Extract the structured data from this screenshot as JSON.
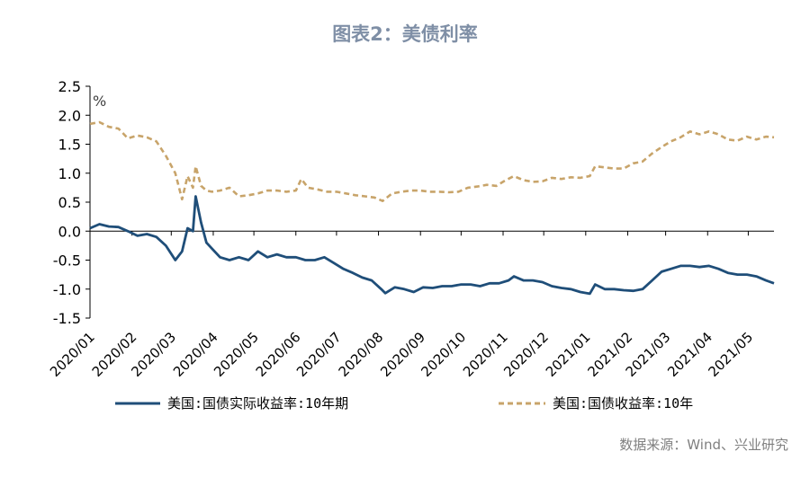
{
  "title": "图表2：美债利率",
  "source": "数据来源：Wind、兴业研究",
  "chart_data": {
    "type": "line",
    "unit_label": "%",
    "ylim": [
      -1.5,
      2.5
    ],
    "yticks": [
      "2.5",
      "2.0",
      "1.5",
      "1.0",
      "0.5",
      "0.0",
      "-0.5",
      "-1.0",
      "-1.5"
    ],
    "x_range": [
      "2020-01-01",
      "2021-05-20"
    ],
    "xticks": [
      "2020/01",
      "2020/02",
      "2020/03",
      "2020/04",
      "2020/05",
      "2020/06",
      "2020/07",
      "2020/08",
      "2020/09",
      "2020/10",
      "2020/11",
      "2020/12",
      "2021/01",
      "2021/02",
      "2021/03",
      "2021/04",
      "2021/05"
    ],
    "grid": false,
    "legend_position": "bottom",
    "series": [
      {
        "name": "美国:国债实际收益率:10年期",
        "color": "#1f4e79",
        "style": "solid",
        "points": [
          [
            "2020-01-01",
            0.05
          ],
          [
            "2020-01-08",
            0.12
          ],
          [
            "2020-01-15",
            0.08
          ],
          [
            "2020-01-22",
            0.07
          ],
          [
            "2020-01-29",
            0.0
          ],
          [
            "2020-02-05",
            -0.08
          ],
          [
            "2020-02-12",
            -0.05
          ],
          [
            "2020-02-19",
            -0.1
          ],
          [
            "2020-02-26",
            -0.25
          ],
          [
            "2020-03-04",
            -0.5
          ],
          [
            "2020-03-09",
            -0.35
          ],
          [
            "2020-03-13",
            0.05
          ],
          [
            "2020-03-17",
            0.0
          ],
          [
            "2020-03-19",
            0.6
          ],
          [
            "2020-03-23",
            0.15
          ],
          [
            "2020-03-27",
            -0.2
          ],
          [
            "2020-03-31",
            -0.3
          ],
          [
            "2020-04-06",
            -0.45
          ],
          [
            "2020-04-13",
            -0.5
          ],
          [
            "2020-04-20",
            -0.45
          ],
          [
            "2020-04-27",
            -0.5
          ],
          [
            "2020-05-04",
            -0.35
          ],
          [
            "2020-05-11",
            -0.45
          ],
          [
            "2020-05-18",
            -0.4
          ],
          [
            "2020-05-25",
            -0.45
          ],
          [
            "2020-06-01",
            -0.45
          ],
          [
            "2020-06-08",
            -0.5
          ],
          [
            "2020-06-15",
            -0.5
          ],
          [
            "2020-06-22",
            -0.45
          ],
          [
            "2020-06-29",
            -0.55
          ],
          [
            "2020-07-06",
            -0.65
          ],
          [
            "2020-07-13",
            -0.72
          ],
          [
            "2020-07-20",
            -0.8
          ],
          [
            "2020-07-27",
            -0.85
          ],
          [
            "2020-08-03",
            -1.0
          ],
          [
            "2020-08-06",
            -1.07
          ],
          [
            "2020-08-13",
            -0.97
          ],
          [
            "2020-08-20",
            -1.0
          ],
          [
            "2020-08-27",
            -1.05
          ],
          [
            "2020-09-03",
            -0.97
          ],
          [
            "2020-09-10",
            -0.98
          ],
          [
            "2020-09-17",
            -0.95
          ],
          [
            "2020-09-24",
            -0.95
          ],
          [
            "2020-10-01",
            -0.92
          ],
          [
            "2020-10-08",
            -0.92
          ],
          [
            "2020-10-15",
            -0.95
          ],
          [
            "2020-10-22",
            -0.9
          ],
          [
            "2020-10-29",
            -0.9
          ],
          [
            "2020-11-05",
            -0.85
          ],
          [
            "2020-11-09",
            -0.78
          ],
          [
            "2020-11-16",
            -0.85
          ],
          [
            "2020-11-23",
            -0.85
          ],
          [
            "2020-11-30",
            -0.88
          ],
          [
            "2020-12-07",
            -0.95
          ],
          [
            "2020-12-14",
            -0.98
          ],
          [
            "2020-12-21",
            -1.0
          ],
          [
            "2020-12-28",
            -1.05
          ],
          [
            "2021-01-04",
            -1.08
          ],
          [
            "2021-01-08",
            -0.92
          ],
          [
            "2021-01-15",
            -1.0
          ],
          [
            "2021-01-22",
            -1.0
          ],
          [
            "2021-01-29",
            -1.02
          ],
          [
            "2021-02-05",
            -1.03
          ],
          [
            "2021-02-12",
            -1.0
          ],
          [
            "2021-02-19",
            -0.85
          ],
          [
            "2021-02-26",
            -0.7
          ],
          [
            "2021-03-05",
            -0.65
          ],
          [
            "2021-03-12",
            -0.6
          ],
          [
            "2021-03-19",
            -0.6
          ],
          [
            "2021-03-26",
            -0.62
          ],
          [
            "2021-04-02",
            -0.6
          ],
          [
            "2021-04-09",
            -0.65
          ],
          [
            "2021-04-16",
            -0.72
          ],
          [
            "2021-04-23",
            -0.75
          ],
          [
            "2021-04-30",
            -0.75
          ],
          [
            "2021-05-07",
            -0.78
          ],
          [
            "2021-05-14",
            -0.85
          ],
          [
            "2021-05-20",
            -0.9
          ]
        ]
      },
      {
        "name": "美国:国债收益率:10年",
        "color": "#c8a46a",
        "style": "dashed",
        "points": [
          [
            "2020-01-01",
            1.85
          ],
          [
            "2020-01-08",
            1.88
          ],
          [
            "2020-01-15",
            1.8
          ],
          [
            "2020-01-22",
            1.77
          ],
          [
            "2020-01-29",
            1.6
          ],
          [
            "2020-02-05",
            1.65
          ],
          [
            "2020-02-12",
            1.62
          ],
          [
            "2020-02-19",
            1.55
          ],
          [
            "2020-02-26",
            1.3
          ],
          [
            "2020-03-04",
            1.0
          ],
          [
            "2020-03-09",
            0.55
          ],
          [
            "2020-03-13",
            0.95
          ],
          [
            "2020-03-17",
            0.75
          ],
          [
            "2020-03-19",
            1.12
          ],
          [
            "2020-03-23",
            0.78
          ],
          [
            "2020-03-27",
            0.7
          ],
          [
            "2020-03-31",
            0.68
          ],
          [
            "2020-04-06",
            0.7
          ],
          [
            "2020-04-13",
            0.75
          ],
          [
            "2020-04-20",
            0.6
          ],
          [
            "2020-04-27",
            0.62
          ],
          [
            "2020-05-04",
            0.65
          ],
          [
            "2020-05-11",
            0.7
          ],
          [
            "2020-05-18",
            0.7
          ],
          [
            "2020-05-25",
            0.68
          ],
          [
            "2020-06-01",
            0.7
          ],
          [
            "2020-06-05",
            0.9
          ],
          [
            "2020-06-10",
            0.75
          ],
          [
            "2020-06-17",
            0.72
          ],
          [
            "2020-06-24",
            0.68
          ],
          [
            "2020-07-01",
            0.68
          ],
          [
            "2020-07-08",
            0.65
          ],
          [
            "2020-07-15",
            0.62
          ],
          [
            "2020-07-22",
            0.6
          ],
          [
            "2020-07-29",
            0.58
          ],
          [
            "2020-08-04",
            0.52
          ],
          [
            "2020-08-11",
            0.65
          ],
          [
            "2020-08-18",
            0.68
          ],
          [
            "2020-08-25",
            0.7
          ],
          [
            "2020-09-01",
            0.7
          ],
          [
            "2020-09-08",
            0.68
          ],
          [
            "2020-09-15",
            0.68
          ],
          [
            "2020-09-22",
            0.67
          ],
          [
            "2020-09-29",
            0.68
          ],
          [
            "2020-10-06",
            0.75
          ],
          [
            "2020-10-13",
            0.77
          ],
          [
            "2020-10-20",
            0.8
          ],
          [
            "2020-10-27",
            0.78
          ],
          [
            "2020-11-03",
            0.88
          ],
          [
            "2020-11-09",
            0.95
          ],
          [
            "2020-11-16",
            0.88
          ],
          [
            "2020-11-23",
            0.85
          ],
          [
            "2020-11-30",
            0.86
          ],
          [
            "2020-12-07",
            0.92
          ],
          [
            "2020-12-14",
            0.9
          ],
          [
            "2020-12-21",
            0.93
          ],
          [
            "2020-12-28",
            0.92
          ],
          [
            "2021-01-04",
            0.95
          ],
          [
            "2021-01-08",
            1.12
          ],
          [
            "2021-01-15",
            1.1
          ],
          [
            "2021-01-22",
            1.08
          ],
          [
            "2021-01-29",
            1.08
          ],
          [
            "2021-02-05",
            1.17
          ],
          [
            "2021-02-12",
            1.2
          ],
          [
            "2021-02-19",
            1.34
          ],
          [
            "2021-02-26",
            1.45
          ],
          [
            "2021-03-05",
            1.55
          ],
          [
            "2021-03-12",
            1.62
          ],
          [
            "2021-03-19",
            1.72
          ],
          [
            "2021-03-26",
            1.67
          ],
          [
            "2021-04-02",
            1.72
          ],
          [
            "2021-04-09",
            1.67
          ],
          [
            "2021-04-16",
            1.58
          ],
          [
            "2021-04-23",
            1.56
          ],
          [
            "2021-04-30",
            1.63
          ],
          [
            "2021-05-07",
            1.58
          ],
          [
            "2021-05-14",
            1.63
          ],
          [
            "2021-05-20",
            1.62
          ]
        ]
      }
    ]
  }
}
